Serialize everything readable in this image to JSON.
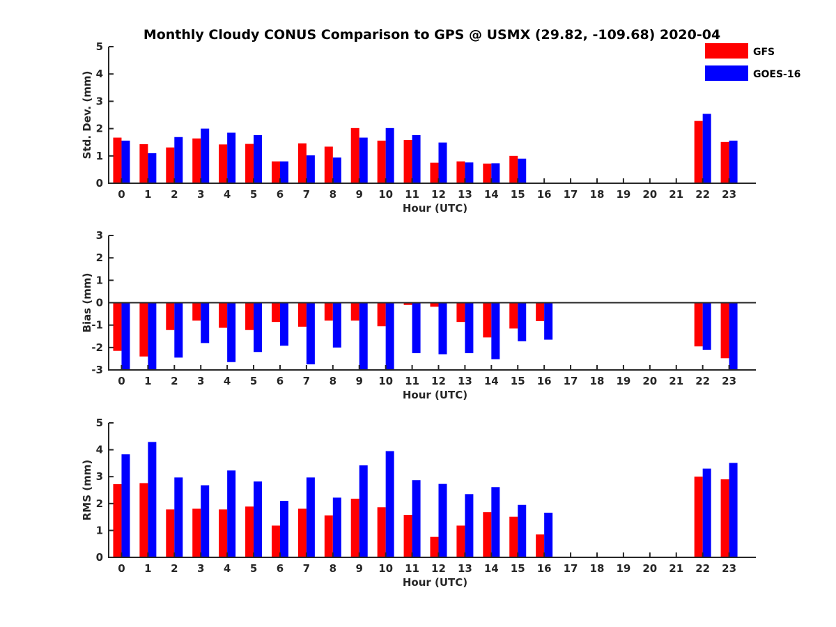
{
  "title": "Monthly Cloudy CONUS Comparison to GPS @ USMX (29.82, -109.68) 2020-04",
  "legend": [
    {
      "name": "GFS",
      "color": "#ff0000"
    },
    {
      "name": "GOES-16",
      "color": "#0000ff"
    }
  ],
  "chart_data": [
    {
      "type": "bar",
      "title": "Monthly Cloudy CONUS Comparison to GPS @ USMX (29.82, -109.68) 2020-04",
      "xlabel": "Hour (UTC)",
      "ylabel": "Std. Dev. (mm)",
      "ylim": [
        0,
        5
      ],
      "yticks": [
        0,
        1,
        2,
        3,
        4,
        5
      ],
      "categories": [
        "0",
        "1",
        "2",
        "3",
        "4",
        "5",
        "6",
        "7",
        "8",
        "9",
        "10",
        "11",
        "12",
        "13",
        "14",
        "15",
        "16",
        "17",
        "18",
        "19",
        "20",
        "21",
        "22",
        "23"
      ],
      "series": [
        {
          "name": "GFS",
          "color": "#ff0000",
          "values": [
            1.67,
            1.43,
            1.31,
            1.64,
            1.42,
            1.44,
            0.8,
            1.46,
            1.34,
            2.02,
            1.56,
            1.58,
            0.75,
            0.8,
            0.72,
            1.0,
            null,
            null,
            null,
            null,
            null,
            null,
            2.28,
            1.51
          ]
        },
        {
          "name": "GOES-16",
          "color": "#0000ff",
          "values": [
            1.56,
            1.1,
            1.69,
            2.0,
            1.85,
            1.76,
            0.8,
            1.02,
            0.94,
            1.67,
            2.02,
            1.76,
            1.49,
            0.76,
            0.73,
            0.9,
            null,
            null,
            null,
            null,
            null,
            null,
            2.54,
            1.56
          ]
        }
      ]
    },
    {
      "type": "bar",
      "xlabel": "Hour (UTC)",
      "ylabel": "Bias (mm)",
      "ylim": [
        -3,
        3
      ],
      "yticks": [
        -3,
        -2,
        -1,
        0,
        1,
        2,
        3
      ],
      "categories": [
        "0",
        "1",
        "2",
        "3",
        "4",
        "5",
        "6",
        "7",
        "8",
        "9",
        "10",
        "11",
        "12",
        "13",
        "14",
        "15",
        "16",
        "17",
        "18",
        "19",
        "20",
        "21",
        "22",
        "23"
      ],
      "series": [
        {
          "name": "GFS",
          "color": "#ff0000",
          "values": [
            -2.15,
            -2.4,
            -1.22,
            -0.8,
            -1.12,
            -1.22,
            -0.86,
            -1.07,
            -0.8,
            -0.8,
            -1.05,
            -0.1,
            -0.18,
            -0.86,
            -1.55,
            -1.15,
            -0.82,
            null,
            null,
            null,
            null,
            null,
            -1.95,
            -2.48
          ]
        },
        {
          "name": "GOES-16",
          "color": "#0000ff",
          "values": [
            -3.0,
            -3.0,
            -2.45,
            -1.8,
            -2.65,
            -2.2,
            -1.92,
            -2.75,
            -2.0,
            -3.0,
            -3.0,
            -2.25,
            -2.3,
            -2.25,
            -2.52,
            -1.72,
            -1.65,
            null,
            null,
            null,
            null,
            null,
            -2.1,
            -3.0
          ]
        }
      ]
    },
    {
      "type": "bar",
      "xlabel": "Hour (UTC)",
      "ylabel": "RMS (mm)",
      "ylim": [
        0,
        5
      ],
      "yticks": [
        0,
        1,
        2,
        3,
        4,
        5
      ],
      "categories": [
        "0",
        "1",
        "2",
        "3",
        "4",
        "5",
        "6",
        "7",
        "8",
        "9",
        "10",
        "11",
        "12",
        "13",
        "14",
        "15",
        "16",
        "17",
        "18",
        "19",
        "20",
        "21",
        "22",
        "23"
      ],
      "series": [
        {
          "name": "GFS",
          "color": "#ff0000",
          "values": [
            2.72,
            2.76,
            1.78,
            1.81,
            1.78,
            1.89,
            1.18,
            1.81,
            1.56,
            2.18,
            1.86,
            1.58,
            0.76,
            1.18,
            1.68,
            1.51,
            0.85,
            null,
            null,
            null,
            null,
            null,
            3.0,
            2.9
          ]
        },
        {
          "name": "GOES-16",
          "color": "#0000ff",
          "values": [
            3.83,
            4.29,
            2.97,
            2.68,
            3.23,
            2.82,
            2.1,
            2.97,
            2.22,
            3.42,
            3.95,
            2.87,
            2.73,
            2.35,
            2.61,
            1.95,
            1.66,
            null,
            null,
            null,
            null,
            null,
            3.3,
            3.51
          ]
        }
      ]
    }
  ]
}
